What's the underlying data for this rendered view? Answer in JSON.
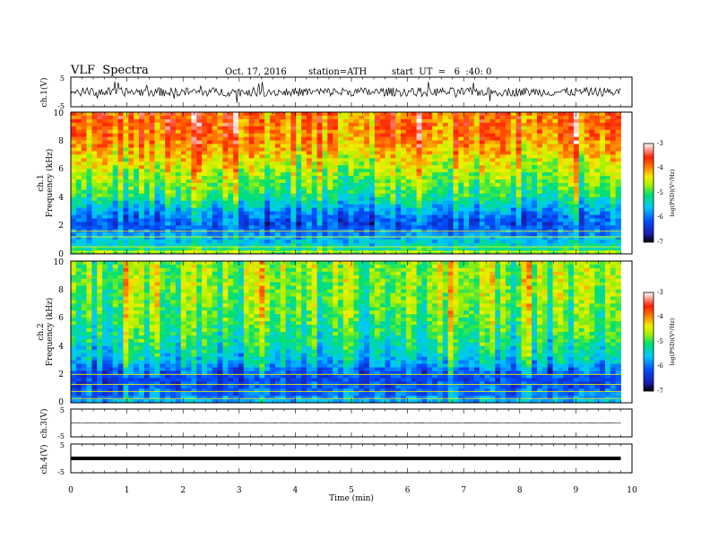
{
  "header": {
    "title": "VLF  Spectra",
    "date": "Oct. 17, 2016",
    "station": "station=ATH",
    "start": "start  UT  =   6  :40: 0"
  },
  "axes": {
    "xlabel": "Time  (min)",
    "xticks": [
      "0",
      "1",
      "2",
      "3",
      "4",
      "5",
      "6",
      "7",
      "8",
      "9",
      "10"
    ],
    "ch1_wave_label": "ch.1(V)",
    "ch3_wave_label": "ch.3(V)",
    "ch4_wave_label": "ch.4(V)",
    "wave_ticks": [
      "5",
      "-5"
    ],
    "spec1_ylabel_a": "ch.1",
    "spec1_ylabel_b": "Frequency  (kHz)",
    "spec2_ylabel_a": "ch.2",
    "spec2_ylabel_b": "Frequency  (kHz)",
    "freq_ticks": [
      "0",
      "2",
      "4",
      "6",
      "8",
      "10"
    ],
    "colorbar_label": "log(PSD)(V²/Hz)",
    "colorbar_ticks": [
      "-3",
      "-4",
      "-5",
      "-6",
      "-7"
    ]
  },
  "colors": {
    "colorbar": [
      "#000000",
      "#1a1aa8",
      "#0050ff",
      "#00c8ff",
      "#00e070",
      "#a8f000",
      "#f0f000",
      "#ff8000",
      "#ff2000",
      "#ffffff"
    ]
  },
  "chart_data": [
    {
      "type": "line",
      "title": "ch.1(V)",
      "xlabel": "Time (min)",
      "xlim": [
        0,
        10
      ],
      "ylim": [
        -5,
        5
      ],
      "series": [
        {
          "name": "ch.1",
          "mean": 0,
          "typical_amplitude": 1.5,
          "end_min": 9.8
        }
      ]
    },
    {
      "type": "heatmap",
      "title": "ch.1",
      "xlabel": "Time (min)",
      "ylabel": "Frequency (kHz)",
      "xlim": [
        0,
        10
      ],
      "ylim": [
        0,
        10
      ],
      "colorbar_range": [
        -7,
        -3
      ],
      "profile_freq_khz": [
        0,
        0.5,
        1,
        1.5,
        2,
        2.5,
        3,
        4,
        5,
        6,
        7,
        8,
        9,
        10
      ],
      "profile_log_psd": [
        -4.6,
        -5.4,
        -5.6,
        -5.9,
        -6.2,
        -6.1,
        -5.8,
        -5.2,
        -4.9,
        -4.6,
        -4.3,
        -4.0,
        -3.9,
        -3.9
      ],
      "note_lines_khz": [
        0.15,
        0.5,
        1.2,
        1.6
      ]
    },
    {
      "type": "heatmap",
      "title": "ch.2",
      "xlabel": "Time (min)",
      "ylabel": "Frequency (kHz)",
      "xlim": [
        0,
        10
      ],
      "ylim": [
        0,
        10
      ],
      "colorbar_range": [
        -7,
        -3
      ],
      "profile_freq_khz": [
        0,
        0.5,
        1,
        1.5,
        2,
        2.5,
        3,
        4,
        5,
        6,
        7,
        8,
        9,
        10
      ],
      "profile_log_psd": [
        -5.6,
        -6.0,
        -6.1,
        -6.3,
        -6.2,
        -5.9,
        -5.6,
        -5.3,
        -5.1,
        -5.0,
        -4.9,
        -4.8,
        -4.8,
        -4.8
      ],
      "note_lines_khz": [
        0.3,
        0.8,
        1.3,
        2.0
      ]
    },
    {
      "type": "line",
      "title": "ch.3(V)",
      "xlim": [
        0,
        10
      ],
      "ylim": [
        -5,
        5
      ],
      "series": [
        {
          "name": "ch.3",
          "mean": 0,
          "typical_amplitude": 0.05,
          "end_min": 9.8
        }
      ]
    },
    {
      "type": "line",
      "title": "ch.4(V)",
      "xlim": [
        0,
        10
      ],
      "ylim": [
        -5,
        5
      ],
      "series": [
        {
          "name": "ch.4",
          "mean": 0,
          "typical_amplitude": 0.3,
          "end_min": 9.8
        }
      ]
    }
  ]
}
